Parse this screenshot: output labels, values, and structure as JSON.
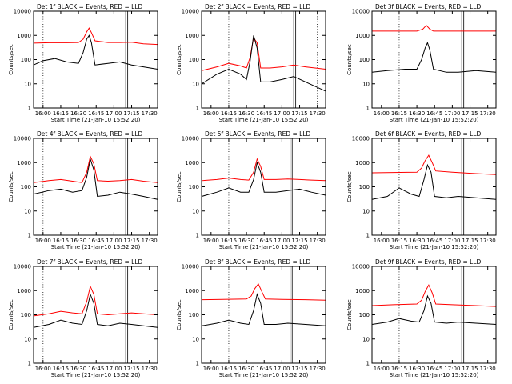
{
  "figure": {
    "background": "#ffffff"
  },
  "chart_data": [
    {
      "type": "line",
      "title": "Det 1f BLACK = Events, RED = LLD",
      "xlabel": "Start Time (21-Jan-10 15:52:20)",
      "ylabel": "Counts/sec",
      "y_scale": "log",
      "ylim": [
        1,
        10000
      ],
      "xlim": [
        "15:52",
        "17:37"
      ],
      "x_ticks": [
        "16:00",
        "16:15",
        "16:30",
        "16:45",
        "17:00",
        "17:15",
        "17:30"
      ],
      "y_ticks": [
        "1",
        "10",
        "100",
        "1000",
        "10000"
      ],
      "dotted_vlines": [
        "16:00",
        "17:34"
      ],
      "solid_vlines": [
        "17:10"
      ],
      "series": [
        {
          "name": "RED = LLD",
          "color": "#ff0000",
          "x": [
            "15:52",
            "16:05",
            "16:20",
            "16:30",
            "16:34",
            "16:37",
            "16:39",
            "16:41",
            "16:44",
            "16:55",
            "17:05",
            "17:15",
            "17:25",
            "17:37"
          ],
          "y": [
            480,
            500,
            500,
            510,
            700,
            1400,
            2000,
            1300,
            600,
            510,
            510,
            520,
            450,
            420
          ]
        },
        {
          "name": "BLACK = Events",
          "color": "#000000",
          "x": [
            "15:52",
            "16:00",
            "16:10",
            "16:20",
            "16:30",
            "16:34",
            "16:37",
            "16:39",
            "16:41",
            "16:44",
            "16:55",
            "17:05",
            "17:15",
            "17:25",
            "17:37"
          ],
          "y": [
            60,
            90,
            110,
            80,
            70,
            200,
            700,
            1000,
            500,
            60,
            70,
            80,
            60,
            50,
            40
          ]
        }
      ]
    },
    {
      "type": "line",
      "title": "Det 2f BLACK = Events, RED = LLD",
      "xlabel": "Start Time (21-Jan-10 15:52:20)",
      "ylabel": "Counts/sec",
      "y_scale": "log",
      "ylim": [
        1,
        10000
      ],
      "xlim": [
        "15:52",
        "17:37"
      ],
      "x_ticks": [
        "16:00",
        "16:15",
        "16:30",
        "16:45",
        "17:00",
        "17:15",
        "17:30"
      ],
      "y_ticks": [
        "1",
        "10",
        "100",
        "1000",
        "10000"
      ],
      "dotted_vlines": [
        "16:15",
        "17:30"
      ],
      "solid_vlines": [
        "17:10"
      ],
      "series": [
        {
          "name": "RED = LLD",
          "color": "#ff0000",
          "x": [
            "15:52",
            "16:05",
            "16:15",
            "16:25",
            "16:30",
            "16:33",
            "16:36",
            "16:39",
            "16:42",
            "16:50",
            "17:00",
            "17:10",
            "17:20",
            "17:37"
          ],
          "y": [
            35,
            50,
            70,
            55,
            45,
            120,
            800,
            500,
            45,
            45,
            50,
            60,
            50,
            40
          ]
        },
        {
          "name": "BLACK = Events",
          "color": "#000000",
          "x": [
            "15:52",
            "16:05",
            "16:15",
            "16:25",
            "16:30",
            "16:33",
            "16:36",
            "16:39",
            "16:42",
            "16:50",
            "17:00",
            "17:10",
            "17:20",
            "17:37"
          ],
          "y": [
            10,
            25,
            40,
            25,
            15,
            80,
            1000,
            300,
            12,
            12,
            15,
            20,
            12,
            5
          ]
        }
      ]
    },
    {
      "type": "line",
      "title": "Det 3f BLACK = Events, RED = LLD",
      "xlabel": "Start Time (21-Jan-10 15:52:20)",
      "ylabel": "Counts/sec",
      "y_scale": "log",
      "ylim": [
        1,
        10000
      ],
      "xlim": [
        "15:52",
        "17:37"
      ],
      "x_ticks": [
        "16:00",
        "16:15",
        "16:30",
        "16:45",
        "17:00",
        "17:15",
        "17:30"
      ],
      "y_ticks": [
        "1",
        "10",
        "100",
        "1000",
        "10000"
      ],
      "dotted_vlines": [
        "16:15"
      ],
      "solid_vlines": [
        "17:08"
      ],
      "series": [
        {
          "name": "RED = LLD",
          "color": "#ff0000",
          "x": [
            "15:52",
            "16:10",
            "16:30",
            "16:35",
            "16:38",
            "16:41",
            "16:44",
            "17:00",
            "17:20",
            "17:37"
          ],
          "y": [
            1500,
            1500,
            1500,
            1800,
            2600,
            1800,
            1500,
            1500,
            1500,
            1500
          ]
        },
        {
          "name": "BLACK = Events",
          "color": "#000000",
          "x": [
            "15:52",
            "16:05",
            "16:20",
            "16:30",
            "16:34",
            "16:37",
            "16:39",
            "16:41",
            "16:44",
            "16:55",
            "17:05",
            "17:20",
            "17:37"
          ],
          "y": [
            30,
            35,
            40,
            40,
            100,
            300,
            500,
            250,
            40,
            30,
            30,
            35,
            30
          ]
        }
      ]
    },
    {
      "type": "line",
      "title": "Det 4f BLACK = Events, RED = LLD",
      "xlabel": "Start Time (21-Jan-10 15:52:20)",
      "ylabel": "Counts/sec",
      "y_scale": "log",
      "ylim": [
        1,
        10000
      ],
      "xlim": [
        "15:52",
        "17:37"
      ],
      "x_ticks": [
        "16:00",
        "16:15",
        "16:30",
        "16:45",
        "17:00",
        "17:15",
        "17:30"
      ],
      "y_ticks": [
        "1",
        "10",
        "100",
        "1000",
        "10000"
      ],
      "dotted_vlines": [
        "16:00"
      ],
      "solid_vlines": [
        "17:10"
      ],
      "series": [
        {
          "name": "RED = LLD",
          "color": "#ff0000",
          "x": [
            "15:52",
            "16:05",
            "16:15",
            "16:25",
            "16:33",
            "16:37",
            "16:40",
            "16:43",
            "16:46",
            "16:55",
            "17:05",
            "17:15",
            "17:25",
            "17:37"
          ],
          "y": [
            150,
            180,
            200,
            170,
            150,
            400,
            1800,
            900,
            180,
            170,
            180,
            200,
            170,
            150
          ]
        },
        {
          "name": "BLACK = Events",
          "color": "#000000",
          "x": [
            "15:52",
            "16:05",
            "16:15",
            "16:25",
            "16:33",
            "16:37",
            "16:40",
            "16:43",
            "16:46",
            "16:55",
            "17:05",
            "17:15",
            "17:25",
            "17:37"
          ],
          "y": [
            50,
            70,
            80,
            60,
            70,
            250,
            1400,
            500,
            40,
            45,
            60,
            50,
            40,
            30
          ]
        }
      ]
    },
    {
      "type": "line",
      "title": "Det 5f BLACK = Events, RED = LLD",
      "xlabel": "Start Time (21-Jan-10 15:52:20)",
      "ylabel": "Counts/sec",
      "y_scale": "log",
      "ylim": [
        1,
        10000
      ],
      "xlim": [
        "15:52",
        "17:37"
      ],
      "x_ticks": [
        "16:00",
        "16:15",
        "16:30",
        "16:45",
        "17:00",
        "17:15",
        "17:30"
      ],
      "y_ticks": [
        "1",
        "10",
        "100",
        "1000",
        "10000"
      ],
      "dotted_vlines": [
        "16:15"
      ],
      "solid_vlines": [
        "17:07"
      ],
      "series": [
        {
          "name": "RED = LLD",
          "color": "#ff0000",
          "x": [
            "15:52",
            "16:05",
            "16:15",
            "16:25",
            "16:32",
            "16:36",
            "16:39",
            "16:42",
            "16:45",
            "16:55",
            "17:05",
            "17:15",
            "17:25",
            "17:37"
          ],
          "y": [
            180,
            200,
            230,
            200,
            190,
            400,
            1400,
            700,
            200,
            200,
            210,
            200,
            190,
            180
          ]
        },
        {
          "name": "BLACK = Events",
          "color": "#000000",
          "x": [
            "15:52",
            "16:05",
            "16:15",
            "16:25",
            "16:32",
            "16:36",
            "16:39",
            "16:42",
            "16:45",
            "16:55",
            "17:05",
            "17:15",
            "17:25",
            "17:37"
          ],
          "y": [
            40,
            60,
            90,
            60,
            60,
            200,
            1000,
            400,
            60,
            60,
            70,
            80,
            60,
            45
          ]
        }
      ]
    },
    {
      "type": "line",
      "title": "Det 6f BLACK = Events, RED = LLD",
      "xlabel": "Start Time (21-Jan-10 15:52:20)",
      "ylabel": "Counts/sec",
      "y_scale": "log",
      "ylim": [
        1,
        10000
      ],
      "xlim": [
        "15:52",
        "17:37"
      ],
      "x_ticks": [
        "16:00",
        "16:15",
        "16:30",
        "16:45",
        "17:00",
        "17:15",
        "17:30"
      ],
      "y_ticks": [
        "1",
        "10",
        "100",
        "1000",
        "10000"
      ],
      "dotted_vlines": [
        "16:15"
      ],
      "solid_vlines": [
        "17:08"
      ],
      "series": [
        {
          "name": "RED = LLD",
          "color": "#ff0000",
          "x": [
            "15:52",
            "16:10",
            "16:30",
            "16:34",
            "16:37",
            "16:40",
            "16:43",
            "16:46",
            "17:00",
            "17:20",
            "17:37"
          ],
          "y": [
            380,
            390,
            400,
            600,
            1200,
            2000,
            1000,
            450,
            400,
            350,
            320
          ]
        },
        {
          "name": "BLACK = Events",
          "color": "#000000",
          "x": [
            "15:52",
            "16:05",
            "16:15",
            "16:25",
            "16:32",
            "16:36",
            "16:39",
            "16:42",
            "16:45",
            "16:55",
            "17:05",
            "17:20",
            "17:37"
          ],
          "y": [
            30,
            40,
            90,
            50,
            40,
            200,
            800,
            400,
            40,
            35,
            40,
            35,
            30
          ]
        }
      ]
    },
    {
      "type": "line",
      "title": "Det 7f BLACK = Events, RED = LLD",
      "xlabel": "Start Time (21-Jan-10 15:52:20)",
      "ylabel": "Counts/sec",
      "y_scale": "log",
      "ylim": [
        1,
        10000
      ],
      "xlim": [
        "15:52",
        "17:37"
      ],
      "x_ticks": [
        "16:00",
        "16:15",
        "16:30",
        "16:45",
        "17:00",
        "17:15",
        "17:30"
      ],
      "y_ticks": [
        "1",
        "10",
        "100",
        "1000",
        "10000"
      ],
      "dotted_vlines": [
        "16:00"
      ],
      "solid_vlines": [
        "17:10"
      ],
      "series": [
        {
          "name": "RED = LLD",
          "color": "#ff0000",
          "x": [
            "15:52",
            "16:05",
            "16:15",
            "16:25",
            "16:33",
            "16:37",
            "16:40",
            "16:43",
            "16:46",
            "16:55",
            "17:05",
            "17:15",
            "17:25",
            "17:37"
          ],
          "y": [
            90,
            110,
            140,
            120,
            110,
            350,
            1500,
            700,
            110,
            100,
            110,
            120,
            110,
            100
          ]
        },
        {
          "name": "BLACK = Events",
          "color": "#000000",
          "x": [
            "15:52",
            "16:05",
            "16:15",
            "16:25",
            "16:33",
            "16:37",
            "16:40",
            "16:43",
            "16:46",
            "16:55",
            "17:05",
            "17:15",
            "17:25",
            "17:37"
          ],
          "y": [
            30,
            40,
            60,
            45,
            40,
            150,
            700,
            300,
            40,
            35,
            45,
            40,
            35,
            30
          ]
        }
      ]
    },
    {
      "type": "line",
      "title": "Det 8f BLACK = Events, RED = LLD",
      "xlabel": "Start Time (21-Jan-10 15:52:20)",
      "ylabel": "Counts/sec",
      "y_scale": "log",
      "ylim": [
        1,
        10000
      ],
      "xlim": [
        "15:52",
        "17:37"
      ],
      "x_ticks": [
        "16:00",
        "16:15",
        "16:30",
        "16:45",
        "17:00",
        "17:15",
        "17:30"
      ],
      "y_ticks": [
        "1",
        "10",
        "100",
        "1000",
        "10000"
      ],
      "dotted_vlines": [
        "16:15"
      ],
      "solid_vlines": [
        "17:07"
      ],
      "series": [
        {
          "name": "RED = LLD",
          "color": "#ff0000",
          "x": [
            "15:52",
            "16:10",
            "16:30",
            "16:34",
            "16:37",
            "16:40",
            "16:43",
            "16:46",
            "17:00",
            "17:20",
            "17:37"
          ],
          "y": [
            420,
            430,
            450,
            600,
            1200,
            1900,
            900,
            450,
            430,
            420,
            400
          ]
        },
        {
          "name": "BLACK = Events",
          "color": "#000000",
          "x": [
            "15:52",
            "16:05",
            "16:15",
            "16:25",
            "16:32",
            "16:36",
            "16:39",
            "16:42",
            "16:45",
            "16:55",
            "17:05",
            "17:20",
            "17:37"
          ],
          "y": [
            35,
            45,
            60,
            45,
            40,
            150,
            700,
            300,
            40,
            40,
            45,
            40,
            35
          ]
        }
      ]
    },
    {
      "type": "line",
      "title": "Det 9f BLACK = Events, RED = LLD",
      "xlabel": "Start Time (21-Jan-10 15:52:20)",
      "ylabel": "Counts/sec",
      "y_scale": "log",
      "ylim": [
        1,
        10000
      ],
      "xlim": [
        "15:52",
        "17:37"
      ],
      "x_ticks": [
        "16:00",
        "16:15",
        "16:30",
        "16:45",
        "17:00",
        "17:15",
        "17:30"
      ],
      "y_ticks": [
        "1",
        "10",
        "100",
        "1000",
        "10000"
      ],
      "dotted_vlines": [
        "16:15"
      ],
      "solid_vlines": [
        "17:08"
      ],
      "series": [
        {
          "name": "RED = LLD",
          "color": "#ff0000",
          "x": [
            "15:52",
            "16:10",
            "16:30",
            "16:34",
            "16:37",
            "16:40",
            "16:43",
            "16:46",
            "17:00",
            "17:20",
            "17:37"
          ],
          "y": [
            240,
            260,
            280,
            400,
            900,
            1700,
            800,
            280,
            260,
            240,
            220
          ]
        },
        {
          "name": "BLACK = Events",
          "color": "#000000",
          "x": [
            "15:52",
            "16:05",
            "16:15",
            "16:25",
            "16:32",
            "16:36",
            "16:39",
            "16:42",
            "16:45",
            "16:55",
            "17:05",
            "17:20",
            "17:37"
          ],
          "y": [
            40,
            50,
            70,
            55,
            50,
            150,
            600,
            300,
            50,
            45,
            50,
            45,
            40
          ]
        }
      ]
    }
  ]
}
